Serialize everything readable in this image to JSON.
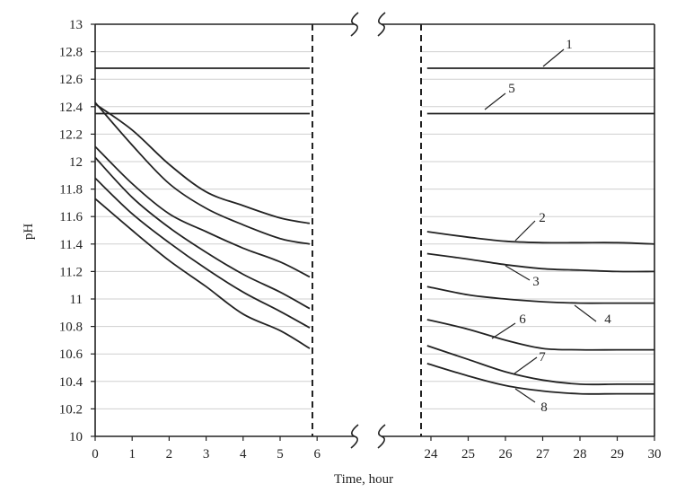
{
  "chart_data": {
    "type": "line",
    "ylabel": "pH",
    "xlabel": "Time, hour",
    "ylim": [
      10,
      13
    ],
    "yticks": [
      "10",
      "10.2",
      "10.4",
      "10.6",
      "10.8",
      "11",
      "11.2",
      "11.4",
      "11.6",
      "11.8",
      "12",
      "12.2",
      "12.4",
      "12.6",
      "12.8",
      "13"
    ],
    "grid": true,
    "x_break": {
      "from": 6,
      "to": 24
    },
    "xticks_left": [
      "0",
      "1",
      "2",
      "3",
      "4",
      "5",
      "6"
    ],
    "xticks_right": [
      "24",
      "25",
      "26",
      "27",
      "28",
      "29",
      "30"
    ],
    "series": [
      {
        "name": "1",
        "left": [
          [
            0,
            12.68
          ],
          [
            5.8,
            12.68
          ]
        ],
        "right": [
          [
            23.9,
            12.68
          ],
          [
            30,
            12.68
          ]
        ]
      },
      {
        "name": "5",
        "left": [
          [
            0,
            12.35
          ],
          [
            5.8,
            12.35
          ]
        ],
        "right": [
          [
            23.9,
            12.35
          ],
          [
            30,
            12.35
          ]
        ]
      },
      {
        "name": "2",
        "left": [
          [
            0,
            12.42
          ],
          [
            1,
            12.23
          ],
          [
            2,
            11.98
          ],
          [
            3,
            11.78
          ],
          [
            4,
            11.68
          ],
          [
            5,
            11.59
          ],
          [
            5.8,
            11.55
          ]
        ],
        "right": [
          [
            23.9,
            11.49
          ],
          [
            25,
            11.45
          ],
          [
            26,
            11.42
          ],
          [
            27,
            11.41
          ],
          [
            28,
            11.41
          ],
          [
            29,
            11.41
          ],
          [
            30,
            11.4
          ]
        ]
      },
      {
        "name": "3",
        "left": [
          [
            0,
            12.43
          ],
          [
            1,
            12.12
          ],
          [
            2,
            11.84
          ],
          [
            3,
            11.66
          ],
          [
            4,
            11.54
          ],
          [
            5,
            11.44
          ],
          [
            5.8,
            11.4
          ]
        ],
        "right": [
          [
            23.9,
            11.33
          ],
          [
            25,
            11.29
          ],
          [
            26,
            11.25
          ],
          [
            27,
            11.22
          ],
          [
            28,
            11.21
          ],
          [
            29,
            11.2
          ],
          [
            30,
            11.2
          ]
        ]
      },
      {
        "name": "4",
        "left": [
          [
            0,
            12.11
          ],
          [
            1,
            11.84
          ],
          [
            2,
            11.62
          ],
          [
            3,
            11.49
          ],
          [
            4,
            11.37
          ],
          [
            5,
            11.27
          ],
          [
            5.8,
            11.16
          ]
        ],
        "right": [
          [
            23.9,
            11.09
          ],
          [
            25,
            11.03
          ],
          [
            26,
            11.0
          ],
          [
            27,
            10.98
          ],
          [
            28,
            10.97
          ],
          [
            29,
            10.97
          ],
          [
            30,
            10.97
          ]
        ]
      },
      {
        "name": "6",
        "left": [
          [
            0,
            12.03
          ],
          [
            1,
            11.74
          ],
          [
            2,
            11.52
          ],
          [
            3,
            11.34
          ],
          [
            4,
            11.18
          ],
          [
            5,
            11.05
          ],
          [
            5.8,
            10.93
          ]
        ],
        "right": [
          [
            23.9,
            10.85
          ],
          [
            25,
            10.78
          ],
          [
            26,
            10.7
          ],
          [
            27,
            10.64
          ],
          [
            28,
            10.63
          ],
          [
            29,
            10.63
          ],
          [
            30,
            10.63
          ]
        ]
      },
      {
        "name": "7",
        "left": [
          [
            0,
            11.88
          ],
          [
            1,
            11.62
          ],
          [
            2,
            11.41
          ],
          [
            3,
            11.22
          ],
          [
            4,
            11.05
          ],
          [
            5,
            10.91
          ],
          [
            5.8,
            10.79
          ]
        ],
        "right": [
          [
            23.9,
            10.66
          ],
          [
            25,
            10.56
          ],
          [
            26,
            10.47
          ],
          [
            27,
            10.41
          ],
          [
            28,
            10.38
          ],
          [
            29,
            10.38
          ],
          [
            30,
            10.38
          ]
        ]
      },
      {
        "name": "8",
        "left": [
          [
            0,
            11.73
          ],
          [
            1,
            11.5
          ],
          [
            2,
            11.28
          ],
          [
            3,
            11.09
          ],
          [
            4,
            10.89
          ],
          [
            5,
            10.77
          ],
          [
            5.8,
            10.64
          ]
        ],
        "right": [
          [
            23.9,
            10.53
          ],
          [
            25,
            10.44
          ],
          [
            26,
            10.37
          ],
          [
            27,
            10.33
          ],
          [
            28,
            10.31
          ],
          [
            29,
            10.31
          ],
          [
            30,
            10.31
          ]
        ]
      }
    ],
    "annotations": [
      {
        "label": "1",
        "series": "1"
      },
      {
        "label": "5",
        "series": "5"
      },
      {
        "label": "2",
        "series": "2"
      },
      {
        "label": "3",
        "series": "3"
      },
      {
        "label": "4",
        "series": "4"
      },
      {
        "label": "6",
        "series": "6"
      },
      {
        "label": "7",
        "series": "7"
      },
      {
        "label": "8",
        "series": "8"
      }
    ]
  }
}
